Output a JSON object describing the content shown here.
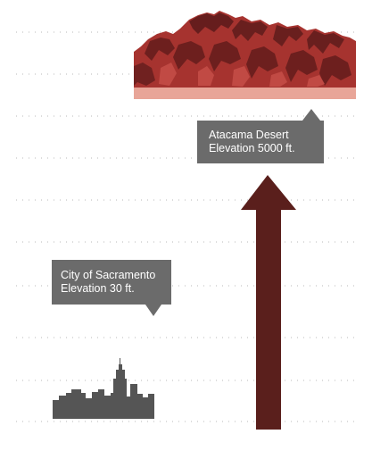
{
  "colors": {
    "background": "#ffffff",
    "gridline": "#b9b9b9",
    "arrow": "#5a1f1c",
    "callout": "#6b6b6b",
    "callout_text": "#ffffff",
    "skyline": "#555555",
    "mountain_dark": "#5a1a1a",
    "mountain_mid": "#a6332f",
    "mountain_light": "#c8504a",
    "mountain_base": "#e8a598"
  },
  "callouts": {
    "desert": {
      "line1": "Atacama Desert",
      "line2": "Elevation 5000 ft."
    },
    "city": {
      "line1": "City of Sacramento",
      "line2": "Elevation 30 ft."
    }
  },
  "icons": {
    "skyline": "city-skyline-icon",
    "mountain": "mountain-range-icon",
    "arrow": "up-arrow-icon"
  }
}
